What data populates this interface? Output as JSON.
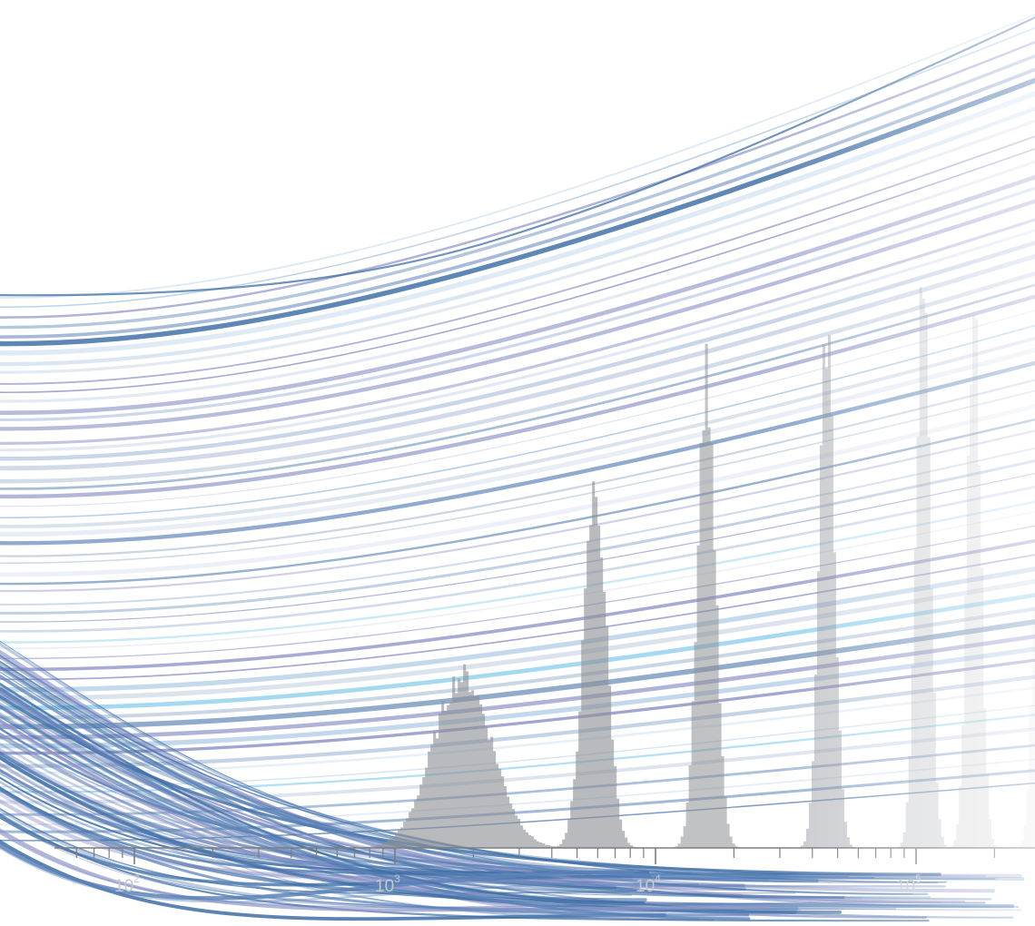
{
  "chart_data": {
    "type": "area",
    "title": "",
    "xlabel": "",
    "ylabel": "",
    "x_scale": "log",
    "xlim": [
      60,
      300000
    ],
    "grid": false,
    "legend": "none",
    "x_tick_labels": [
      {
        "value": 100,
        "base": "10",
        "exp": "2"
      },
      {
        "value": 1000,
        "base": "10",
        "exp": "3"
      },
      {
        "value": 10000,
        "base": "10",
        "exp": "4"
      },
      {
        "value": 100000,
        "base": "10",
        "exp": "5"
      }
    ],
    "series": [
      {
        "center": 1800,
        "peak": 0.3,
        "width": 0.09,
        "opacity": 0.62
      },
      {
        "center": 5800,
        "peak": 0.62,
        "width": 0.035,
        "opacity": 0.62
      },
      {
        "center": 15500,
        "peak": 0.83,
        "width": 0.027,
        "opacity": 0.55
      },
      {
        "center": 45000,
        "peak": 0.9,
        "width": 0.023,
        "opacity": 0.45
      },
      {
        "center": 105000,
        "peak": 1.0,
        "width": 0.021,
        "opacity": 0.3
      },
      {
        "center": 165000,
        "peak": 0.95,
        "width": 0.02,
        "opacity": 0.22
      },
      {
        "center": 300000,
        "peak": 0.98,
        "width": 0.02,
        "opacity": 0.12
      }
    ],
    "colors": {
      "hist": "#8c8f94",
      "axis": "#7a7d80",
      "tick_label": "#c4c8cc",
      "curve_palette": [
        "#3f6fa6",
        "#5a82b8",
        "#8f95c8",
        "#a7c6e2",
        "#8fd0ee",
        "#c9d3e6",
        "#b9c8dc"
      ]
    }
  }
}
